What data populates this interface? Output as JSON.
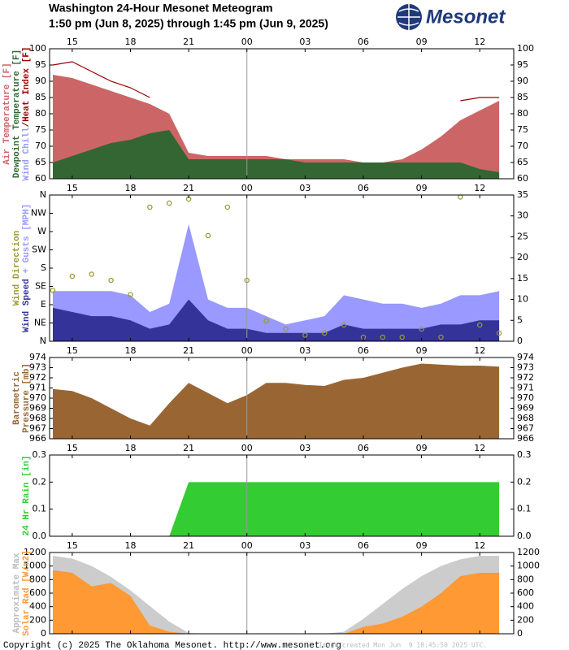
{
  "header": {
    "title": "Washington 24-Hour Mesonet Meteogram",
    "subtitle": "1:50 pm (Jun 8, 2025) through 1:45 pm (Jun 9, 2025)",
    "logo": "Mesonet"
  },
  "chart_data": [
    {
      "type": "area",
      "xlim": [
        13.833,
        37.75
      ],
      "vline": 24,
      "xticks": [
        {
          "value": 15,
          "label": "15"
        },
        {
          "value": 18,
          "label": "18"
        },
        {
          "value": 21,
          "label": "21"
        },
        {
          "value": 24,
          "label": "00"
        },
        {
          "value": 27,
          "label": "03"
        },
        {
          "value": 30,
          "label": "06"
        },
        {
          "value": 33,
          "label": "09"
        },
        {
          "value": 36,
          "label": "12"
        }
      ],
      "ylim": [
        60,
        100
      ],
      "yticks": [
        60,
        65,
        70,
        75,
        80,
        85,
        90,
        95,
        100
      ],
      "ylabels": [
        [
          {
            "text": "Air Temperature [F]",
            "color": "#cc6666"
          }
        ],
        [
          {
            "text": "Dewpoint Temperature [F]",
            "color": "#336633"
          }
        ],
        [
          {
            "text": "Wind Chill",
            "color": "#9999ff"
          },
          {
            "text": "/Heat Index [F]",
            "color": "#990000"
          }
        ]
      ],
      "x": [
        14,
        15,
        16,
        17,
        18,
        19,
        20,
        21,
        22,
        23,
        24,
        25,
        26,
        27,
        28,
        29,
        30,
        31,
        32,
        33,
        34,
        35,
        36,
        37
      ],
      "series": [
        {
          "name": "Air Temperature",
          "kind": "area",
          "color": "#cc6666",
          "values": [
            92,
            91,
            89,
            87,
            85,
            83,
            80,
            68,
            67,
            67,
            67,
            67,
            66,
            66,
            66,
            66,
            65,
            65,
            66,
            69,
            73,
            78,
            81,
            84
          ]
        },
        {
          "name": "Dewpoint Temperature",
          "kind": "area",
          "color": "#336633",
          "values": [
            65,
            67,
            69,
            71,
            72,
            74,
            75,
            66,
            66,
            66,
            66,
            66,
            66,
            65,
            65,
            65,
            65,
            65,
            65,
            65,
            65,
            65,
            63,
            62
          ]
        },
        {
          "name": "Heat Index",
          "kind": "line",
          "color": "#990000",
          "values": [
            95,
            96,
            93,
            90,
            88,
            85,
            null,
            null,
            null,
            null,
            null,
            null,
            null,
            null,
            null,
            null,
            null,
            null,
            null,
            null,
            null,
            84,
            85,
            85
          ]
        }
      ]
    },
    {
      "type": "area",
      "xlim": [
        13.833,
        37.75
      ],
      "vline": 24,
      "xticks": [
        {
          "value": 15,
          "label": "15"
        },
        {
          "value": 18,
          "label": "18"
        },
        {
          "value": 21,
          "label": "21"
        },
        {
          "value": 24,
          "label": "00"
        },
        {
          "value": 27,
          "label": "03"
        },
        {
          "value": 30,
          "label": "06"
        },
        {
          "value": 33,
          "label": "09"
        },
        {
          "value": 36,
          "label": "12"
        }
      ],
      "ylim": [
        0,
        360
      ],
      "yticks": [
        {
          "value": 0,
          "label": "N"
        },
        {
          "value": 45,
          "label": "NE"
        },
        {
          "value": 90,
          "label": "E"
        },
        {
          "value": 135,
          "label": "SE"
        },
        {
          "value": 180,
          "label": "S"
        },
        {
          "value": 225,
          "label": "SW"
        },
        {
          "value": 270,
          "label": "W"
        },
        {
          "value": 315,
          "label": "NW"
        },
        {
          "value": 360,
          "label": "N"
        }
      ],
      "y2lim": [
        0,
        35
      ],
      "y2ticks": [
        0,
        5,
        10,
        15,
        20,
        25,
        30,
        35
      ],
      "ylabels": [
        [
          {
            "text": "Wind Direction",
            "color": "#999933"
          }
        ],
        [
          {
            "text": "Wind Speed",
            "color": "#333399"
          },
          {
            "text": " + Gusts [MPH]",
            "color": "#9999ff"
          }
        ]
      ],
      "x": [
        14,
        15,
        16,
        17,
        18,
        19,
        20,
        21,
        22,
        23,
        24,
        25,
        26,
        27,
        28,
        29,
        30,
        31,
        32,
        33,
        34,
        35,
        36,
        37
      ],
      "series": [
        {
          "name": "Gusts",
          "kind": "area",
          "axis": "y2",
          "color": "#9999ff",
          "values": [
            12,
            12,
            12,
            12,
            11,
            7,
            9,
            28,
            10,
            8,
            8,
            6,
            4,
            5,
            6,
            11,
            10,
            9,
            9,
            8,
            9,
            11,
            11,
            12
          ]
        },
        {
          "name": "Wind Speed",
          "kind": "area",
          "axis": "y2",
          "color": "#333399",
          "values": [
            8,
            7,
            6,
            6,
            5,
            3,
            4,
            10,
            5,
            3,
            3,
            2,
            2,
            2,
            2,
            4,
            3,
            3,
            3,
            3,
            4,
            4,
            5,
            5
          ]
        },
        {
          "name": "Wind Direction",
          "kind": "scatter",
          "axis": "y",
          "color": "#999933",
          "values": [
            125,
            160,
            165,
            150,
            115,
            330,
            340,
            350,
            260,
            330,
            150,
            50,
            30,
            15,
            20,
            40,
            10,
            10,
            10,
            30,
            10,
            355,
            40,
            20
          ]
        }
      ]
    },
    {
      "type": "area",
      "xlim": [
        13.833,
        37.75
      ],
      "vline": 24,
      "xticks": [
        {
          "value": 15,
          "label": "15"
        },
        {
          "value": 18,
          "label": "18"
        },
        {
          "value": 21,
          "label": "21"
        },
        {
          "value": 24,
          "label": "00"
        },
        {
          "value": 27,
          "label": "03"
        },
        {
          "value": 30,
          "label": "06"
        },
        {
          "value": 33,
          "label": "09"
        },
        {
          "value": 36,
          "label": "12"
        }
      ],
      "ylim": [
        966,
        974
      ],
      "yticks": [
        966,
        967,
        968,
        969,
        970,
        971,
        972,
        973,
        974
      ],
      "ylabels": [
        [
          {
            "text": "Barometric",
            "color": "#996633"
          }
        ],
        [
          {
            "text": "Pressure [mb]",
            "color": "#996633"
          }
        ]
      ],
      "x": [
        14,
        15,
        16,
        17,
        18,
        19,
        20,
        21,
        22,
        23,
        24,
        25,
        26,
        27,
        28,
        29,
        30,
        31,
        32,
        33,
        34,
        35,
        36,
        37
      ],
      "series": [
        {
          "name": "Pressure",
          "kind": "area",
          "color": "#996633",
          "values": [
            970.9,
            970.7,
            970.0,
            969.0,
            968.0,
            967.3,
            969.5,
            971.5,
            970.5,
            969.5,
            970.3,
            971.5,
            971.5,
            971.3,
            971.2,
            971.8,
            972.0,
            972.5,
            973.0,
            973.4,
            973.3,
            973.2,
            973.2,
            973.1
          ]
        }
      ]
    },
    {
      "type": "area",
      "xlim": [
        13.833,
        37.75
      ],
      "vline": 24,
      "xticks": [
        {
          "value": 15,
          "label": "15"
        },
        {
          "value": 18,
          "label": "18"
        },
        {
          "value": 21,
          "label": "21"
        },
        {
          "value": 24,
          "label": "00"
        },
        {
          "value": 27,
          "label": "03"
        },
        {
          "value": 30,
          "label": "06"
        },
        {
          "value": 33,
          "label": "09"
        },
        {
          "value": 36,
          "label": "12"
        }
      ],
      "ylim": [
        0,
        0.3
      ],
      "yticks": [
        {
          "value": 0,
          "label": "0.0"
        },
        0.1,
        0.2,
        0.3
      ],
      "ylabels": [
        [
          {
            "text": "24 Hr Rain [in]",
            "color": "#33cc33"
          }
        ]
      ],
      "x": [
        14,
        15,
        16,
        17,
        18,
        19,
        20,
        21,
        22,
        23,
        24,
        25,
        26,
        27,
        28,
        29,
        30,
        31,
        32,
        33,
        34,
        35,
        36,
        37
      ],
      "series": [
        {
          "name": "Rain",
          "kind": "area",
          "color": "#33cc33",
          "values": [
            0,
            0,
            0,
            0,
            0,
            0,
            0,
            0.2,
            0.2,
            0.2,
            0.2,
            0.2,
            0.2,
            0.2,
            0.2,
            0.2,
            0.2,
            0.2,
            0.2,
            0.2,
            0.2,
            0.2,
            0.2,
            0.2
          ]
        }
      ]
    },
    {
      "type": "area",
      "xlim": [
        13.833,
        37.75
      ],
      "vline": 24,
      "xticks": [
        {
          "value": 15,
          "label": "15"
        },
        {
          "value": 18,
          "label": "18"
        },
        {
          "value": 21,
          "label": "21"
        },
        {
          "value": 24,
          "label": "00"
        },
        {
          "value": 27,
          "label": "03"
        },
        {
          "value": 30,
          "label": "06"
        },
        {
          "value": 33,
          "label": "09"
        },
        {
          "value": 36,
          "label": "12"
        }
      ],
      "ylim": [
        0,
        1200
      ],
      "yticks": [
        0,
        200,
        400,
        600,
        800,
        1000,
        1200
      ],
      "ylabels": [
        [
          {
            "text": "Approximate Max",
            "color": "#bbbbbb"
          }
        ],
        [
          {
            "text": "Solar Rad [W/m2]",
            "color": "#ff9933"
          }
        ]
      ],
      "x": [
        14,
        15,
        16,
        17,
        18,
        19,
        20,
        21,
        22,
        23,
        24,
        25,
        26,
        27,
        28,
        29,
        30,
        31,
        32,
        33,
        34,
        35,
        36,
        37
      ],
      "series": [
        {
          "name": "Approximate Max",
          "kind": "area",
          "color": "#cccccc",
          "values": [
            1150,
            1110,
            1000,
            840,
            640,
            410,
            180,
            10,
            0,
            0,
            0,
            0,
            0,
            0,
            0,
            30,
            220,
            440,
            660,
            850,
            1000,
            1100,
            1150,
            1150
          ]
        },
        {
          "name": "Solar Rad",
          "kind": "area",
          "color": "#ff9933",
          "values": [
            940,
            900,
            700,
            750,
            560,
            120,
            30,
            0,
            0,
            0,
            0,
            0,
            0,
            0,
            0,
            0,
            100,
            150,
            250,
            400,
            600,
            850,
            900,
            900
          ]
        }
      ]
    }
  ],
  "footer": {
    "copyright": "Copyright (c) 2025 The Oklahoma Mesonet. http://www.mesonet.org",
    "stamp": "Image created Mon Jun  9 18:45:50 2025 UTC."
  }
}
